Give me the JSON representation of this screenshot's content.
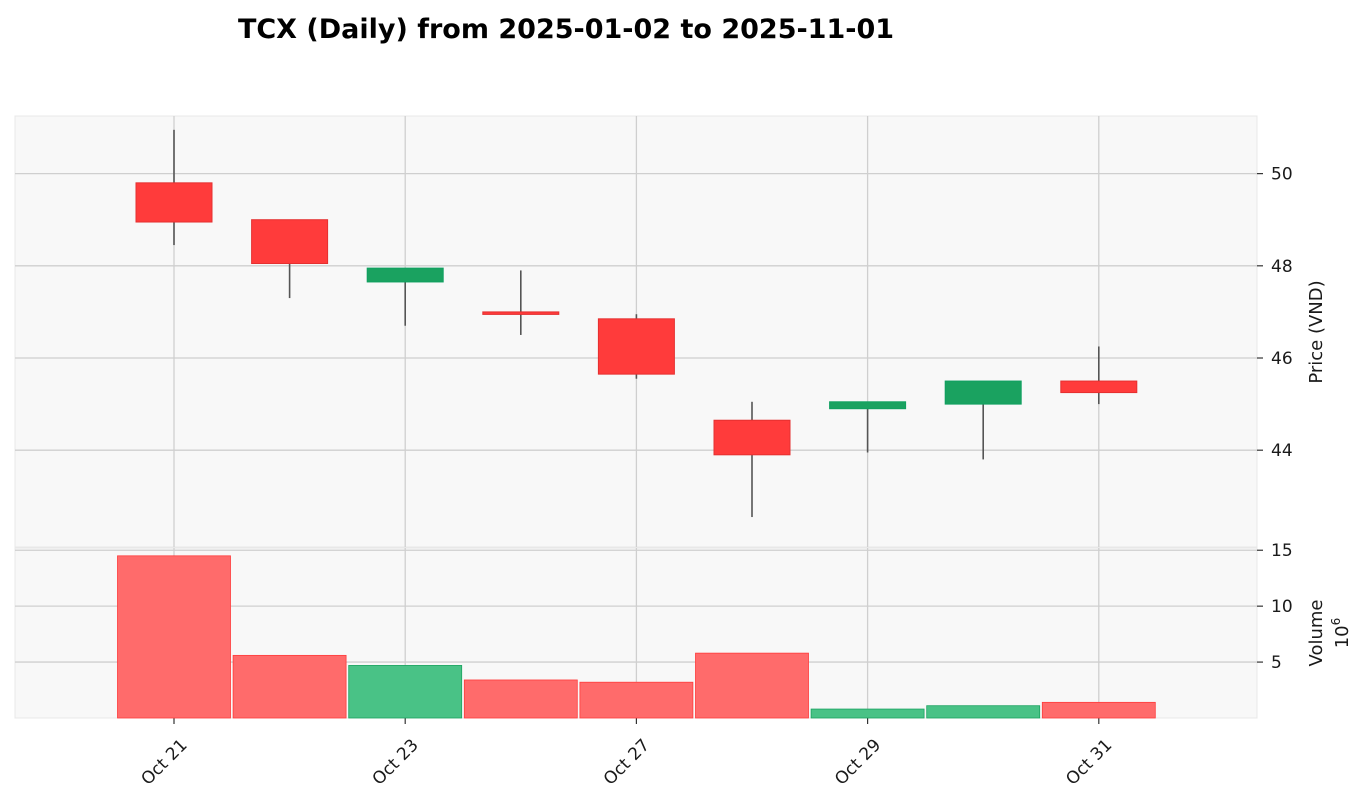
{
  "chart_data": {
    "type": "candlestick",
    "title": "TCX (Daily) from 2025-01-02 to 2025-11-01",
    "price_panel": {
      "ylabel": "Price (VND)",
      "yticks": [
        44,
        46,
        48,
        50
      ],
      "ylim": [
        41.9,
        51.25
      ]
    },
    "volume_panel": {
      "ylabel": "Volume",
      "yscale_label": "10",
      "yscale_exp": "6",
      "yticks": [
        5,
        10,
        15
      ],
      "ylim": [
        0,
        15.2
      ]
    },
    "x_tick_labels": [
      {
        "index": 0,
        "label": "Oct 21"
      },
      {
        "index": 2,
        "label": "Oct 23"
      },
      {
        "index": 4,
        "label": "Oct 27"
      },
      {
        "index": 6,
        "label": "Oct 29"
      },
      {
        "index": 8,
        "label": "Oct 31"
      }
    ],
    "candles": [
      {
        "date": "2025-10-21",
        "open": 49.8,
        "high": 50.95,
        "low": 48.45,
        "close": 48.95,
        "volume": 14.5
      },
      {
        "date": "2025-10-22",
        "open": 49.0,
        "high": 49.0,
        "low": 47.3,
        "close": 48.05,
        "volume": 5.6
      },
      {
        "date": "2025-10-23",
        "open": 47.65,
        "high": 47.95,
        "low": 46.7,
        "close": 47.95,
        "volume": 4.7
      },
      {
        "date": "2025-10-24",
        "open": 47.0,
        "high": 47.9,
        "low": 46.5,
        "close": 46.95,
        "volume": 3.4
      },
      {
        "date": "2025-10-27",
        "open": 46.85,
        "high": 46.95,
        "low": 45.55,
        "close": 45.65,
        "volume": 3.2
      },
      {
        "date": "2025-10-28",
        "open": 44.65,
        "high": 45.05,
        "low": 42.55,
        "close": 43.9,
        "volume": 5.8
      },
      {
        "date": "2025-10-29",
        "open": 44.9,
        "high": 45.05,
        "low": 43.95,
        "close": 45.05,
        "volume": 0.8
      },
      {
        "date": "2025-10-30",
        "open": 45.0,
        "high": 45.5,
        "low": 43.8,
        "close": 45.5,
        "volume": 1.1
      },
      {
        "date": "2025-10-31",
        "open": 45.5,
        "high": 46.25,
        "low": 45.0,
        "close": 45.25,
        "volume": 1.4
      }
    ],
    "colors": {
      "up": "#1aa260",
      "down": "#ff3b3b",
      "volume_up": "#49c286",
      "volume_down": "#ff6b6b",
      "panel_bg": "#f8f8f8",
      "grid": "#cfcfcf",
      "wick": "#555555"
    }
  }
}
